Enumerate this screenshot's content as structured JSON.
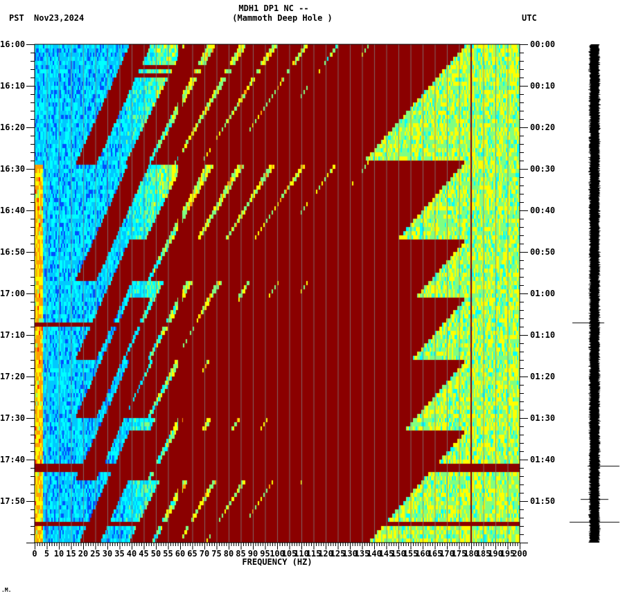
{
  "header": {
    "title_line1": "MDH1 DP1 NC --",
    "title_line2": "(Mammoth Deep Hole )",
    "left_timezone": "PST",
    "date": "Nov23,2024",
    "right_timezone": "UTC"
  },
  "chart_data": {
    "type": "heatmap",
    "title": "MDH1 DP1 NC -- (Mammoth Deep Hole )",
    "xlabel": "FREQUENCY (HZ)",
    "ylabel_left": "PST",
    "ylabel_right": "UTC",
    "xlim": [
      0,
      200
    ],
    "x_ticks": [
      "0",
      "5",
      "10",
      "15",
      "20",
      "25",
      "30",
      "35",
      "40",
      "45",
      "50",
      "55",
      "60",
      "65",
      "70",
      "75",
      "80",
      "85",
      "90",
      "95",
      "100",
      "105",
      "110",
      "115",
      "120",
      "125",
      "130",
      "135",
      "140",
      "145",
      "150",
      "155",
      "160",
      "165",
      "170",
      "175",
      "180",
      "185",
      "190",
      "195",
      "200"
    ],
    "y_ticks_left": [
      "16:00",
      "16:10",
      "16:20",
      "16:30",
      "16:40",
      "16:50",
      "17:00",
      "17:10",
      "17:20",
      "17:30",
      "17:40",
      "17:50"
    ],
    "y_ticks_right": [
      "00:00",
      "00:10",
      "00:20",
      "00:30",
      "00:40",
      "00:50",
      "01:00",
      "01:10",
      "01:20",
      "01:30",
      "01:40",
      "01:50"
    ],
    "time_range_minutes": 120,
    "colormap": [
      "#0050ff",
      "#00c8ff",
      "#00ffff",
      "#80ff80",
      "#ffff00",
      "#ffa000",
      "#ff2000",
      "#8b0000"
    ],
    "persistent_lines_hz": [
      60,
      180
    ],
    "horizontal_bursts_minutes": [
      5,
      7,
      67,
      101.5,
      115
    ],
    "arc_events_start_minutes": [
      0,
      28,
      47,
      61,
      76,
      93
    ],
    "notes": "Low frequencies (<40 Hz) mostly blue/cyan background; higher frequencies yellow-green noise; repeated dark-red descending harmonic arcs; strong continuous 60 Hz line"
  },
  "seismogram": {
    "spikes_minutes": [
      67,
      101.5,
      109.5,
      115
    ]
  },
  "footer": {
    "mark": ".M."
  }
}
